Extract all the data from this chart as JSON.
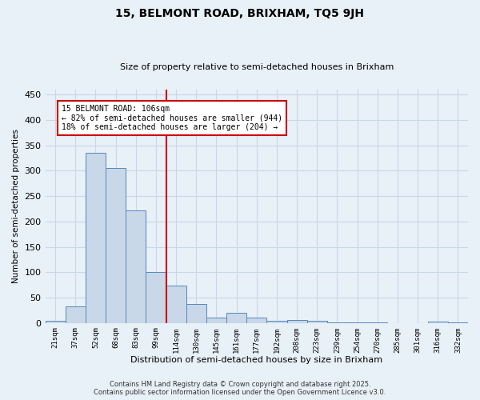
{
  "title": "15, BELMONT ROAD, BRIXHAM, TQ5 9JH",
  "subtitle": "Size of property relative to semi-detached houses in Brixham",
  "xlabel": "Distribution of semi-detached houses by size in Brixham",
  "ylabel": "Number of semi-detached properties",
  "categories": [
    "21sqm",
    "37sqm",
    "52sqm",
    "68sqm",
    "83sqm",
    "99sqm",
    "114sqm",
    "130sqm",
    "145sqm",
    "161sqm",
    "177sqm",
    "192sqm",
    "208sqm",
    "223sqm",
    "239sqm",
    "254sqm",
    "270sqm",
    "285sqm",
    "301sqm",
    "316sqm",
    "332sqm"
  ],
  "values": [
    5,
    32,
    335,
    305,
    222,
    100,
    74,
    37,
    10,
    20,
    10,
    5,
    6,
    4,
    1,
    1,
    1,
    0,
    0,
    2,
    1
  ],
  "bar_color": "#c8d8e8",
  "bar_edge_color": "#5588bb",
  "ylim": [
    0,
    460
  ],
  "yticks": [
    0,
    50,
    100,
    150,
    200,
    250,
    300,
    350,
    400,
    450
  ],
  "redline_x": 5.5,
  "annotation_title": "15 BELMONT ROAD: 106sqm",
  "annotation_line1": "← 82% of semi-detached houses are smaller (944)",
  "annotation_line2": "18% of semi-detached houses are larger (204) →",
  "annotation_box_color": "#ffffff",
  "annotation_box_edge_color": "#cc0000",
  "redline_color": "#cc0000",
  "grid_color": "#c8d8e8",
  "background_color": "#e8f0f8",
  "footer_line1": "Contains HM Land Registry data © Crown copyright and database right 2025.",
  "footer_line2": "Contains public sector information licensed under the Open Government Licence v3.0."
}
